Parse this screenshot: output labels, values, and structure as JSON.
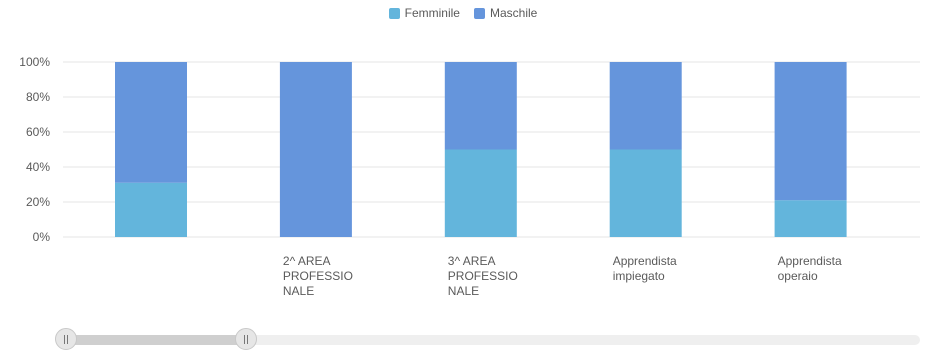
{
  "legend": {
    "female_label": "Femminile",
    "male_label": "Maschile"
  },
  "colors": {
    "female": "#63b5dc",
    "male": "#6595dc",
    "grid": "#e6e6e6",
    "text": "#5a5a5a"
  },
  "slider": {
    "handle_icon": "grip-icon",
    "start_fraction": 0.0,
    "end_fraction": 0.21
  },
  "chart_data": {
    "type": "bar",
    "stacked": true,
    "y_percent": true,
    "categories": [
      [],
      [
        "2^ AREA",
        "PROFESSIO",
        "NALE"
      ],
      [
        "3^ AREA",
        "PROFESSIO",
        "NALE"
      ],
      [
        "Apprendista",
        "impiegato"
      ],
      [
        "Apprendista",
        "operaio"
      ]
    ],
    "series": [
      {
        "name": "Femminile",
        "values": [
          31,
          0,
          50,
          50,
          21
        ]
      },
      {
        "name": "Maschile",
        "values": [
          69,
          100,
          50,
          50,
          79
        ]
      }
    ],
    "yticks": [
      "0%",
      "20%",
      "40%",
      "60%",
      "80%",
      "100%"
    ],
    "ylim": [
      0,
      100
    ],
    "grid": true,
    "legend_position": "top-center"
  }
}
